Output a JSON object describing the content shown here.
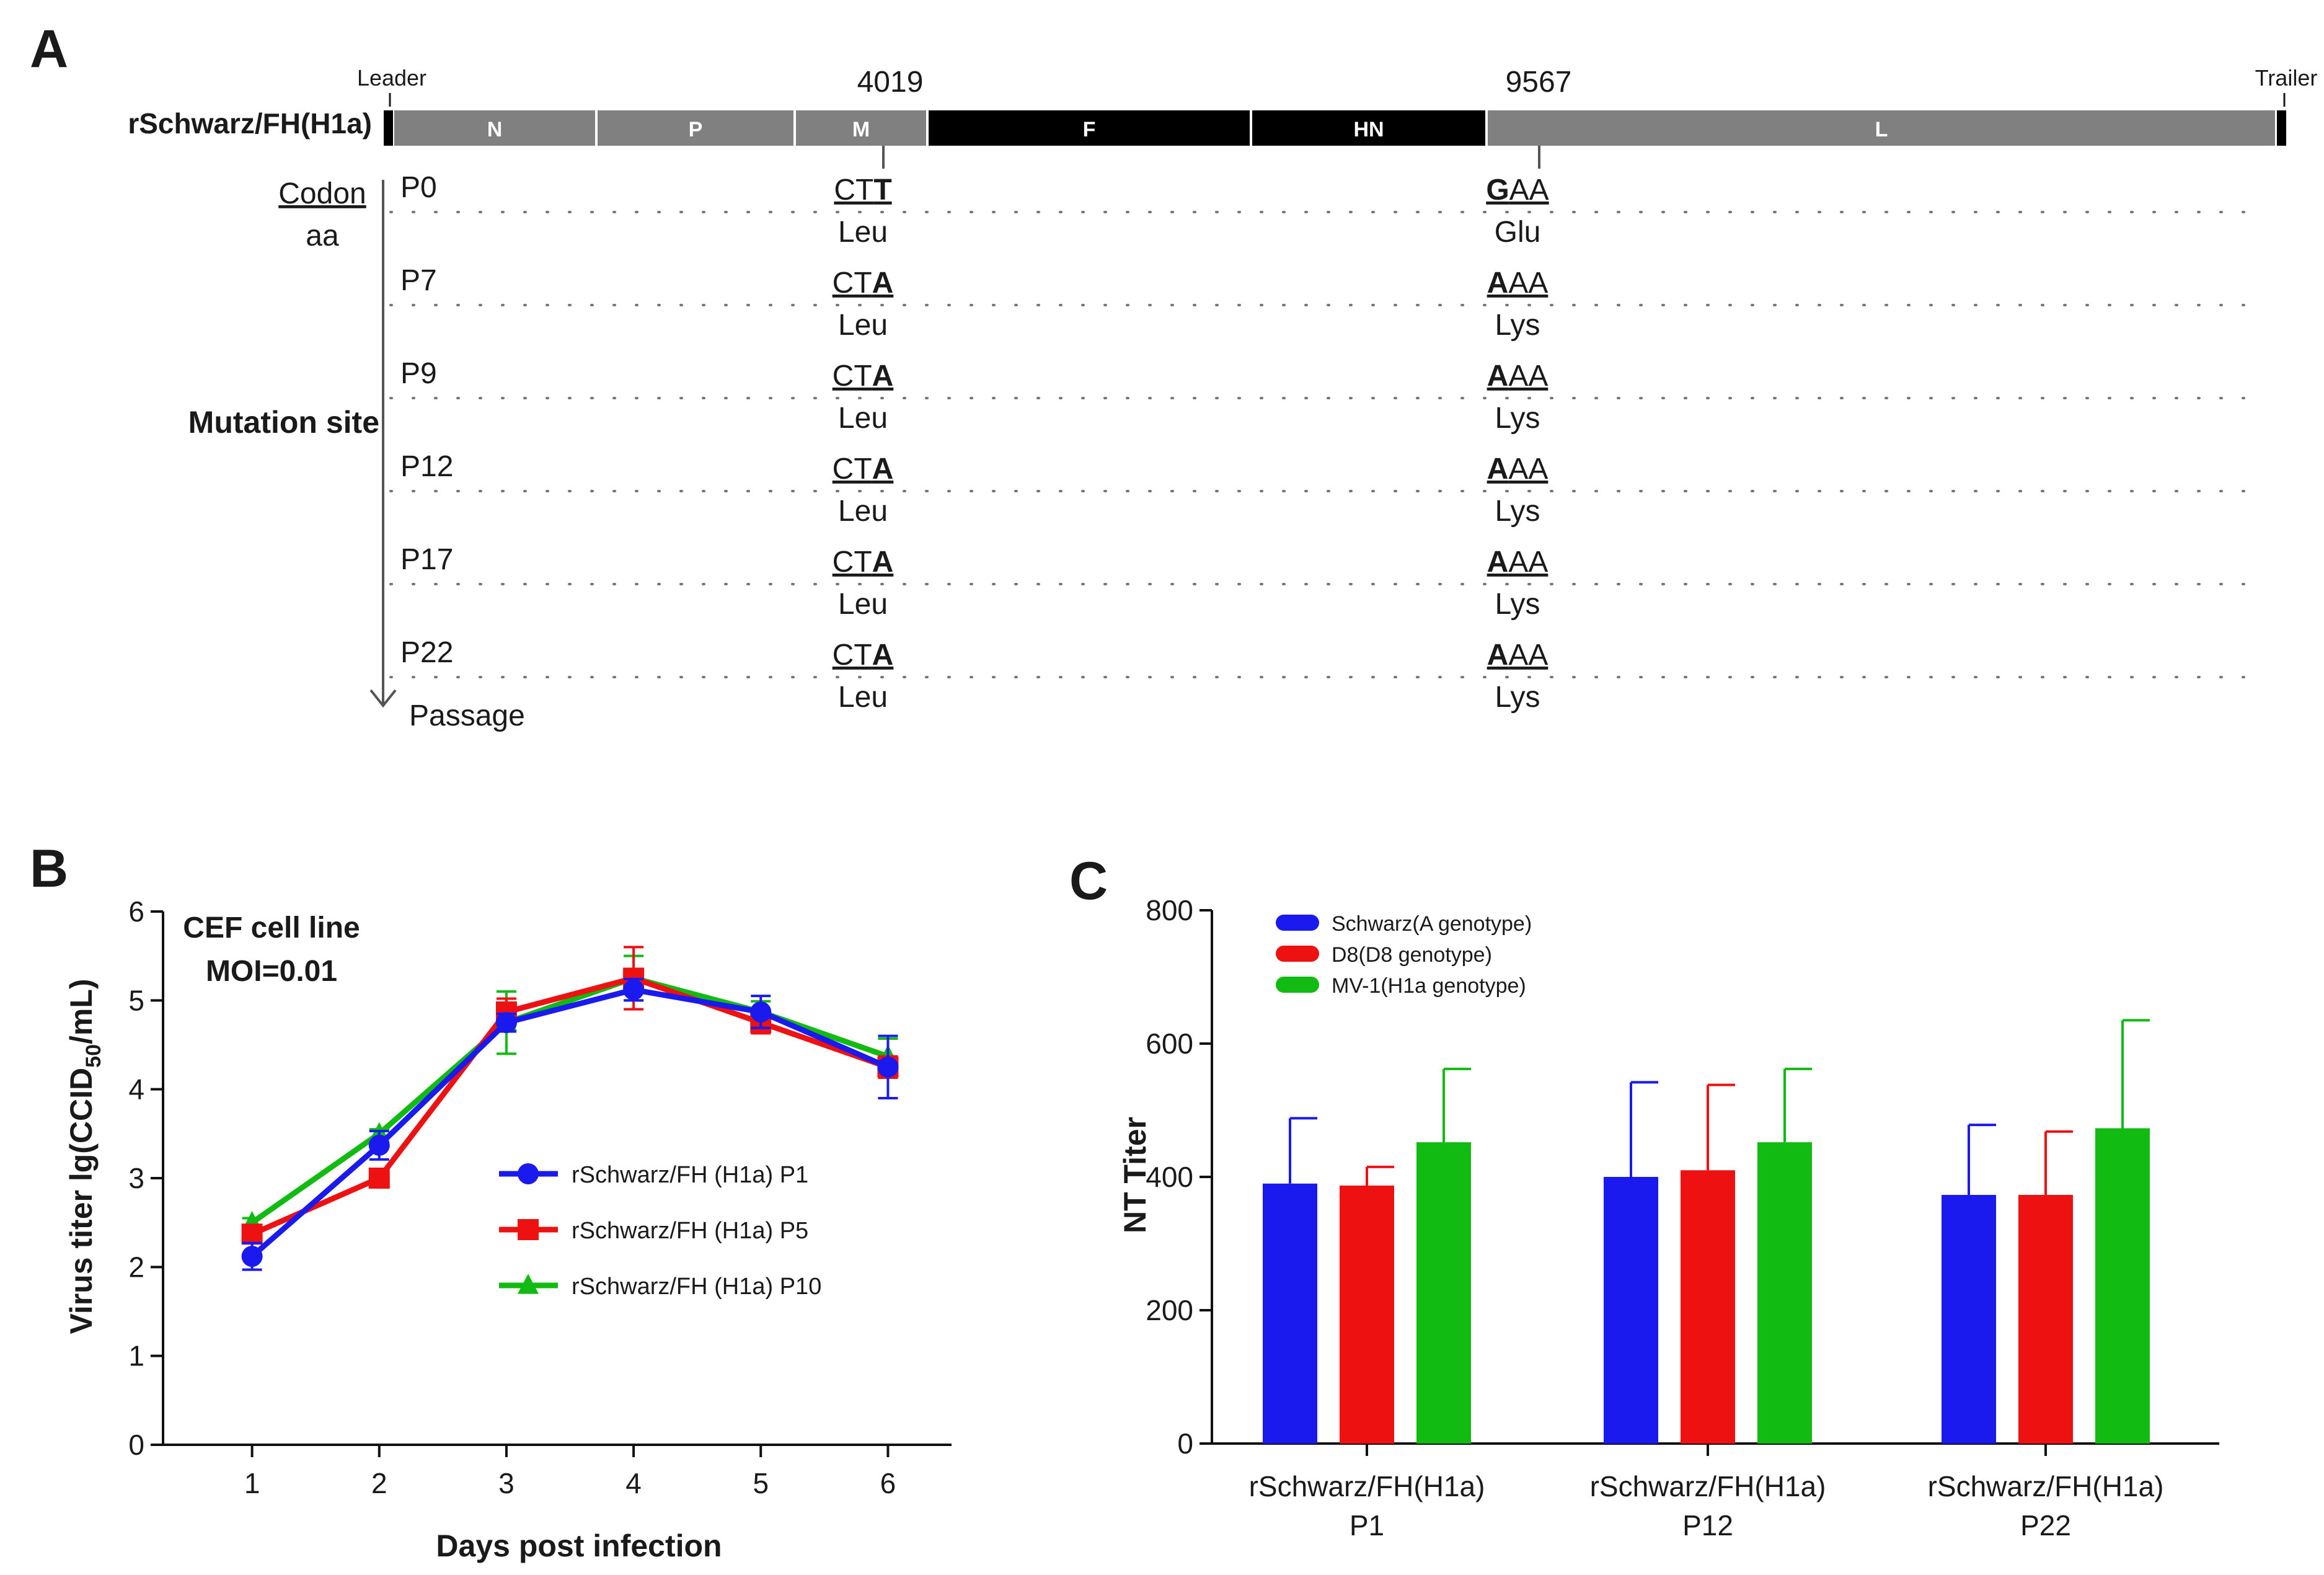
{
  "panels": {
    "a": "A",
    "b": "B",
    "c": "C"
  },
  "genome": {
    "construct": "rSchwarz/FH(H1a)",
    "leader": "Leader",
    "trailer": "Trailer",
    "genes": [
      {
        "label": "N",
        "color": "#808080"
      },
      {
        "label": "P",
        "color": "#808080"
      },
      {
        "label": "M",
        "color": "#808080"
      },
      {
        "label": "F",
        "color": "#000000"
      },
      {
        "label": "HN",
        "color": "#000000"
      },
      {
        "label": "L",
        "color": "#808080"
      }
    ],
    "site1_position": "4019",
    "site2_position": "9567",
    "codon_label": "Codon",
    "aa_label": "aa",
    "mutation_label": "Mutation site",
    "passage_label": "Passage",
    "rows": [
      {
        "passage": "P0",
        "c1_plain": "CT",
        "c1_bold": "T",
        "aa1": "Leu",
        "c2_bold": "G",
        "c2_plain": "AA",
        "aa2": "Glu"
      },
      {
        "passage": "P7",
        "c1_plain": "CT",
        "c1_bold": "A",
        "aa1": "Leu",
        "c2_bold": "A",
        "c2_plain": "AA",
        "aa2": "Lys"
      },
      {
        "passage": "P9",
        "c1_plain": "CT",
        "c1_bold": "A",
        "aa1": "Leu",
        "c2_bold": "A",
        "c2_plain": "AA",
        "aa2": "Lys"
      },
      {
        "passage": "P12",
        "c1_plain": "CT",
        "c1_bold": "A",
        "aa1": "Leu",
        "c2_bold": "A",
        "c2_plain": "AA",
        "aa2": "Lys"
      },
      {
        "passage": "P17",
        "c1_plain": "CT",
        "c1_bold": "A",
        "aa1": "Leu",
        "c2_bold": "A",
        "c2_plain": "AA",
        "aa2": "Lys"
      },
      {
        "passage": "P22",
        "c1_plain": "CT",
        "c1_bold": "A",
        "aa1": "Leu",
        "c2_bold": "A",
        "c2_plain": "AA",
        "aa2": "Lys"
      }
    ]
  },
  "chart_data": [
    {
      "type": "line",
      "title": "CEF cell line",
      "subtitle": "MOI=0.01",
      "xlabel": "Days post infection",
      "ylabel": "Virus titer lg(CCID50/mL)",
      "ylabel_main": "Virus titer lg(CCID",
      "ylabel_sub": "50",
      "ylabel_end": "/mL)",
      "x": [
        1,
        2,
        3,
        4,
        5,
        6
      ],
      "xlim": [
        0.3,
        6.5
      ],
      "ylim": [
        0,
        6
      ],
      "yticks": [
        0,
        1,
        2,
        3,
        4,
        5,
        6
      ],
      "legend_position": "center-right",
      "series": [
        {
          "name": "rSchwarz/FH (H1a) P1",
          "color": "#1a1aee",
          "marker": "circle",
          "values": [
            2.12,
            3.37,
            4.75,
            5.12,
            4.87,
            4.25
          ],
          "errors": [
            0.15,
            0.16,
            0.1,
            0.12,
            0.18,
            0.35
          ]
        },
        {
          "name": "rSchwarz/FH (H1a) P5",
          "color": "#ee1111",
          "marker": "square",
          "values": [
            2.37,
            3.0,
            4.87,
            5.25,
            4.75,
            4.25
          ],
          "errors": [
            0.1,
            0.05,
            0.15,
            0.35,
            0.12,
            0.12
          ]
        },
        {
          "name": "rSchwarz/FH (H1a) P10",
          "color": "#11bb11",
          "marker": "triangle",
          "values": [
            2.5,
            3.5,
            4.75,
            5.25,
            4.87,
            4.37
          ],
          "errors": [
            0.05,
            0.05,
            0.35,
            0.25,
            0.12,
            0.2
          ]
        }
      ]
    },
    {
      "type": "bar",
      "ylabel": "NT Titer",
      "ylim": [
        0,
        800
      ],
      "yticks": [
        0,
        200,
        400,
        600,
        800
      ],
      "legend_position": "top-left",
      "categories": [
        {
          "line1": "rSchwarz/FH(H1a)",
          "line2": "P1"
        },
        {
          "line1": "rSchwarz/FH(H1a)",
          "line2": "P12"
        },
        {
          "line1": "rSchwarz/FH(H1a)",
          "line2": "P22"
        }
      ],
      "series": [
        {
          "name": "Schwarz(A genotype)",
          "color": "#1a1aee",
          "values": [
            390,
            400,
            373
          ],
          "errors": [
            98,
            142,
            105
          ]
        },
        {
          "name": "D8(D8 genotype)",
          "color": "#ee1111",
          "values": [
            387,
            410,
            373
          ],
          "errors": [
            28,
            128,
            95
          ]
        },
        {
          "name": "MV-1(H1a genotype)",
          "color": "#11bb11",
          "values": [
            452,
            452,
            473
          ],
          "errors": [
            110,
            110,
            162
          ]
        }
      ]
    }
  ]
}
